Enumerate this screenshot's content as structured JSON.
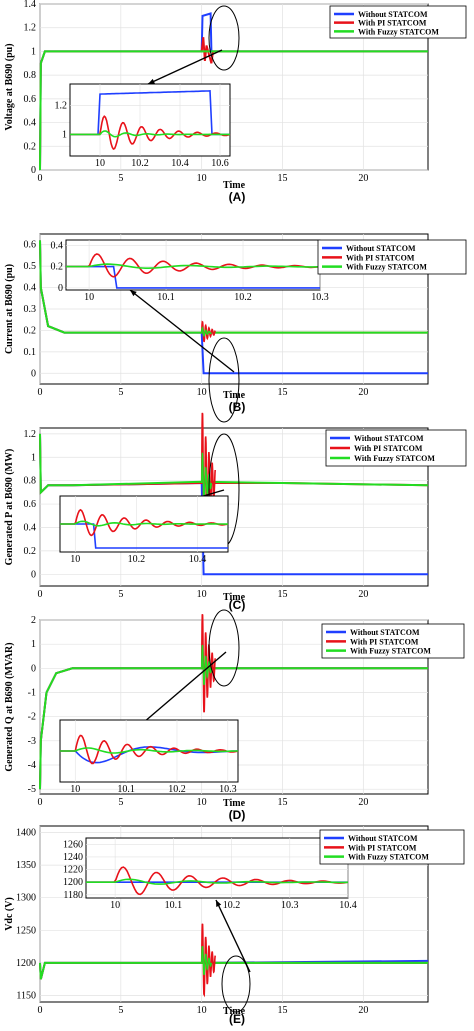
{
  "series_colors": {
    "Without STATCOM": "#1f3fff",
    "With PI STATCOM": "#e8121a",
    "With Fuzzy STATCOM": "#22dd22"
  },
  "chart_data": [
    {
      "panel_label": "(A)",
      "type": "line",
      "xlabel": "Time",
      "ylabel": "Voltage at B690 (pu)",
      "xlim": [
        0,
        24
      ],
      "ylim": [
        0,
        1.4
      ],
      "xticks": [
        "0",
        "5",
        "10",
        "15",
        "20"
      ],
      "yticks": [
        "0",
        "0.2",
        "0.4",
        "0.6",
        "0.8",
        "1",
        "1.2",
        "1.4"
      ],
      "legend": {
        "position": "top-right",
        "entries": [
          "Without STATCOM",
          "With PI STATCOM",
          "With Fuzzy STATCOM"
        ]
      },
      "series": [
        {
          "name": "Without STATCOM",
          "x": [
            0,
            0.05,
            0.3,
            1.0,
            2,
            10,
            10.05,
            10.55,
            10.6,
            24
          ],
          "y": [
            0,
            0.9,
            1.0,
            1.0,
            1.0,
            1.0,
            1.3,
            1.32,
            1.0,
            1.0
          ]
        },
        {
          "name": "With PI STATCOM",
          "x": [
            0,
            0.05,
            0.3,
            1.0,
            2,
            10,
            10.1,
            10.2,
            10.3,
            10.6,
            10.7,
            24
          ],
          "y": [
            0,
            0.9,
            1.0,
            1.0,
            1.0,
            1.0,
            1.12,
            0.92,
            1.05,
            0.9,
            1.0,
            1.0
          ]
        },
        {
          "name": "With Fuzzy STATCOM",
          "x": [
            0,
            0.05,
            0.3,
            1.0,
            2,
            10,
            10.6,
            24
          ],
          "y": [
            0,
            0.9,
            1.0,
            1.0,
            1.0,
            1.0,
            1.0,
            1.0
          ]
        }
      ],
      "inset": {
        "xticks": [
          "10",
          "10.2",
          "10.4",
          "10.6"
        ],
        "yticks": [
          "1",
          "1.2"
        ],
        "xlim": [
          9.85,
          10.65
        ],
        "ylim": [
          0.85,
          1.35
        ]
      }
    },
    {
      "panel_label": "(B)",
      "type": "line",
      "xlabel": "Time",
      "ylabel": "Current at B690 (pu)",
      "xlim": [
        0,
        24
      ],
      "ylim": [
        -0.05,
        0.65
      ],
      "xticks": [
        "0",
        "5",
        "10",
        "15",
        "20"
      ],
      "yticks": [
        "0",
        "0.1",
        "0.2",
        "0.3",
        "0.4",
        "0.5",
        "0.6"
      ],
      "legend": {
        "position": "top-right",
        "entries": [
          "Without STATCOM",
          "With PI STATCOM",
          "With Fuzzy STATCOM"
        ]
      },
      "series": [
        {
          "name": "Without STATCOM",
          "x": [
            0,
            0.05,
            0.5,
            1.5,
            10,
            10.12,
            24
          ],
          "y": [
            0.62,
            0.4,
            0.22,
            0.19,
            0.19,
            0.0,
            0.0
          ]
        },
        {
          "name": "With PI STATCOM",
          "x": [
            0,
            0.05,
            0.5,
            1.5,
            10,
            24
          ],
          "y": [
            0.62,
            0.4,
            0.22,
            0.19,
            0.19,
            0.19
          ]
        },
        {
          "name": "With Fuzzy STATCOM",
          "x": [
            0,
            0.05,
            0.5,
            1.5,
            10,
            24
          ],
          "y": [
            0.62,
            0.4,
            0.22,
            0.19,
            0.19,
            0.19
          ]
        }
      ],
      "inset": {
        "xticks": [
          "10",
          "10.1",
          "10.2",
          "10.3"
        ],
        "yticks": [
          "0",
          "0.2",
          "0.4"
        ],
        "xlim": [
          9.97,
          10.3
        ],
        "ylim": [
          -0.02,
          0.45
        ]
      }
    },
    {
      "panel_label": "(C)",
      "type": "line",
      "xlabel": "Time",
      "ylabel": "Generated P at B690 (MW)",
      "xlim": [
        0,
        24
      ],
      "ylim": [
        -0.1,
        1.25
      ],
      "xticks": [
        "0",
        "5",
        "10",
        "15",
        "20"
      ],
      "yticks": [
        "0",
        "0.2",
        "0.4",
        "0.6",
        "0.8",
        "1",
        "1.2"
      ],
      "legend": {
        "position": "top-right",
        "entries": [
          "Without STATCOM",
          "With PI STATCOM",
          "With Fuzzy STATCOM"
        ]
      },
      "series": [
        {
          "name": "Without STATCOM",
          "x": [
            0,
            0.05,
            0.5,
            2,
            10,
            10.12,
            24
          ],
          "y": [
            1.2,
            0.7,
            0.76,
            0.76,
            0.78,
            0.0,
            0.0
          ]
        },
        {
          "name": "With PI STATCOM",
          "x": [
            0,
            0.05,
            0.5,
            2,
            10,
            15,
            24
          ],
          "y": [
            1.2,
            0.7,
            0.76,
            0.76,
            0.78,
            0.78,
            0.76
          ]
        },
        {
          "name": "With Fuzzy STATCOM",
          "x": [
            0,
            0.05,
            0.5,
            2,
            10,
            15,
            24
          ],
          "y": [
            1.2,
            0.7,
            0.76,
            0.76,
            0.79,
            0.78,
            0.76
          ]
        }
      ],
      "inset": {
        "xticks": [
          "10",
          "10.2",
          "10.4"
        ],
        "yticks": [],
        "xlim": [
          9.95,
          10.5
        ],
        "ylim": [
          -0.1,
          1.3
        ]
      }
    },
    {
      "panel_label": "(D)",
      "type": "line",
      "xlabel": "Time",
      "ylabel": "Generated Q at B690 (MVAR)",
      "xlim": [
        0,
        24
      ],
      "ylim": [
        -5.2,
        2
      ],
      "xticks": [
        "0",
        "5",
        "10",
        "15",
        "20"
      ],
      "yticks": [
        "-5",
        "-4",
        "-3",
        "-2",
        "-1",
        "0",
        "1",
        "2"
      ],
      "legend": {
        "position": "top-right",
        "entries": [
          "Without STATCOM",
          "With PI STATCOM",
          "With Fuzzy STATCOM"
        ]
      },
      "series": [
        {
          "name": "Without STATCOM",
          "x": [
            0,
            0.05,
            0.4,
            1.0,
            2,
            10,
            24
          ],
          "y": [
            -5,
            -3,
            -1,
            -0.2,
            0,
            0,
            0
          ]
        },
        {
          "name": "With PI STATCOM",
          "x": [
            0,
            0.05,
            0.4,
            1.0,
            2,
            10,
            24
          ],
          "y": [
            -5,
            -3,
            -1,
            -0.2,
            0,
            0,
            0
          ]
        },
        {
          "name": "With Fuzzy STATCOM",
          "x": [
            0,
            0.05,
            0.4,
            1.0,
            2,
            10,
            24
          ],
          "y": [
            -5,
            -3,
            -1,
            -0.2,
            0,
            0,
            0
          ]
        }
      ],
      "inset": {
        "xticks": [
          "10",
          "10.1",
          "10.2",
          "10.3"
        ],
        "yticks": [],
        "xlim": [
          9.97,
          10.32
        ],
        "ylim": [
          -2.5,
          2.5
        ]
      }
    },
    {
      "panel_label": "(E)",
      "type": "line",
      "xlabel": "Time",
      "ylabel": "Vdc (V)",
      "xlim": [
        0,
        24
      ],
      "ylim": [
        1140,
        1410
      ],
      "xticks": [
        "0",
        "5",
        "10",
        "15",
        "20"
      ],
      "yticks": [
        "1150",
        "1200",
        "1250",
        "1300",
        "1350",
        "1400"
      ],
      "legend": {
        "position": "top-right",
        "entries": [
          "Without STATCOM",
          "With PI STATCOM",
          "With Fuzzy STATCOM"
        ]
      },
      "series": [
        {
          "name": "Without STATCOM",
          "x": [
            0,
            0.05,
            0.3,
            1,
            10,
            24
          ],
          "y": [
            1200,
            1175,
            1200,
            1200,
            1200,
            1203
          ]
        },
        {
          "name": "With PI STATCOM",
          "x": [
            0,
            0.05,
            0.3,
            1,
            10,
            24
          ],
          "y": [
            1200,
            1175,
            1200,
            1200,
            1200,
            1200
          ]
        },
        {
          "name": "With Fuzzy STATCOM",
          "x": [
            0,
            0.05,
            0.3,
            1,
            10,
            24
          ],
          "y": [
            1200,
            1175,
            1200,
            1200,
            1200,
            1200
          ]
        }
      ],
      "inset": {
        "xticks": [
          "10",
          "10.1",
          "10.2",
          "10.3",
          "10.4"
        ],
        "yticks": [
          "1180",
          "1200",
          "1220",
          "1240",
          "1260"
        ],
        "xlim": [
          9.95,
          10.4
        ],
        "ylim": [
          1175,
          1270
        ]
      }
    }
  ]
}
